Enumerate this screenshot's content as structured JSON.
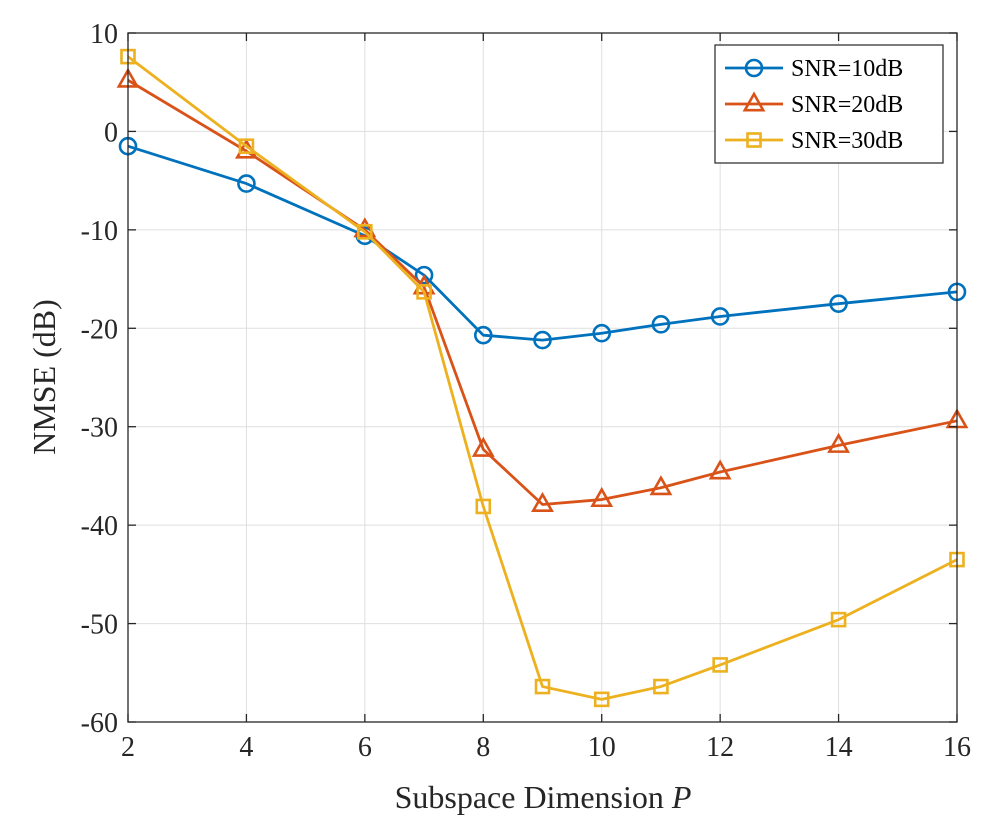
{
  "chart_data": {
    "type": "line",
    "title": "",
    "xlabel": "Subspace Dimension",
    "xlabel_var": "P",
    "ylabel": "NMSE (dB)",
    "xlim": [
      2,
      16
    ],
    "ylim": [
      -60,
      10
    ],
    "xticks": [
      2,
      4,
      6,
      8,
      10,
      12,
      14,
      16
    ],
    "yticks": [
      10,
      0,
      -10,
      -20,
      -30,
      -40,
      -50,
      -60
    ],
    "grid": true,
    "legend_position": "top-right",
    "x": [
      2,
      4,
      6,
      7,
      8,
      9,
      10,
      11,
      12,
      14,
      16
    ],
    "series": [
      {
        "name": "SNR=10dB",
        "marker": "circle",
        "color": "#0072BD",
        "values": [
          -1.5,
          -5.3,
          -10.6,
          -14.6,
          -20.7,
          -21.2,
          -20.5,
          -19.6,
          -18.8,
          -17.5,
          -16.3
        ]
      },
      {
        "name": "SNR=20dB",
        "marker": "triangle",
        "color": "#D95319",
        "values": [
          5.2,
          -2.0,
          -10.0,
          -15.8,
          -32.3,
          -37.9,
          -37.4,
          -36.2,
          -34.6,
          -31.9,
          -29.4
        ]
      },
      {
        "name": "SNR=30dB",
        "marker": "square",
        "color": "#EDB120",
        "values": [
          7.6,
          -1.5,
          -10.2,
          -16.3,
          -38.1,
          -56.4,
          -57.7,
          -56.4,
          -54.2,
          -49.6,
          -43.5
        ]
      }
    ]
  }
}
